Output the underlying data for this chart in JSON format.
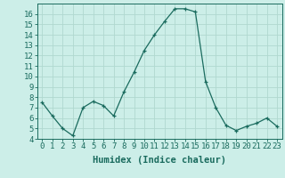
{
  "x": [
    0,
    1,
    2,
    3,
    4,
    5,
    6,
    7,
    8,
    9,
    10,
    11,
    12,
    13,
    14,
    15,
    16,
    17,
    18,
    19,
    20,
    21,
    22,
    23
  ],
  "y": [
    7.5,
    6.2,
    5.0,
    4.3,
    7.0,
    7.6,
    7.2,
    6.2,
    8.5,
    10.4,
    12.5,
    14.0,
    15.3,
    16.5,
    16.5,
    16.2,
    9.5,
    7.0,
    5.3,
    4.8,
    5.2,
    5.5,
    6.0,
    5.2
  ],
  "xlabel": "Humidex (Indice chaleur)",
  "xlim": [
    -0.5,
    23.5
  ],
  "ylim": [
    4,
    17
  ],
  "yticks": [
    4,
    5,
    6,
    7,
    8,
    9,
    10,
    11,
    12,
    13,
    14,
    15,
    16
  ],
  "xticks": [
    0,
    1,
    2,
    3,
    4,
    5,
    6,
    7,
    8,
    9,
    10,
    11,
    12,
    13,
    14,
    15,
    16,
    17,
    18,
    19,
    20,
    21,
    22,
    23
  ],
  "line_color": "#1a6b5e",
  "bg_color": "#cceee8",
  "grid_color": "#b0d8d0",
  "text_color": "#1a6b5e",
  "tick_fontsize": 6.5,
  "label_fontsize": 7.5
}
